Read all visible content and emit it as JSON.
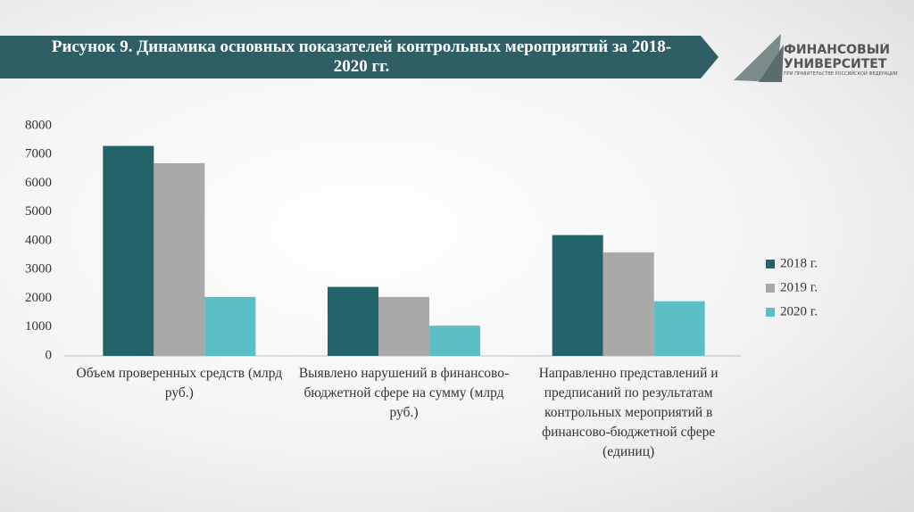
{
  "chart_data": {
    "type": "bar",
    "title": "Рисунок 9. Динамика основных показателей контрольных мероприятий за 2018-2020 гг.",
    "categories": [
      "Объем проверенных средств (млрд руб.)",
      "Выявлено нарушений в финансово-бюджетной сфере на сумму (млрд руб.)",
      "Направленно представлений и предписаний по результатам контрольных мероприятий в финансово-бюджетной сфере (единиц)"
    ],
    "series": [
      {
        "name": "2018 г.",
        "color": "#23636a",
        "values": [
          7300,
          2400,
          4200
        ]
      },
      {
        "name": "2019 г.",
        "color": "#a9a9a9",
        "values": [
          6700,
          2050,
          3600
        ]
      },
      {
        "name": "2020 г.",
        "color": "#5bbfc7",
        "values": [
          2050,
          1050,
          1900
        ]
      }
    ],
    "ylim": [
      0,
      8000
    ],
    "yticks": [
      0,
      1000,
      2000,
      3000,
      4000,
      5000,
      6000,
      7000,
      8000
    ],
    "grid": false,
    "legend": "right"
  },
  "logo": {
    "name": "ФИНАНСОВЫЙ УНИВЕРСИТЕТ",
    "subtitle": "ПРИ ПРАВИТЕЛЬСТВЕ РОССИЙСКОЙ ФЕДЕРАЦИИ"
  }
}
